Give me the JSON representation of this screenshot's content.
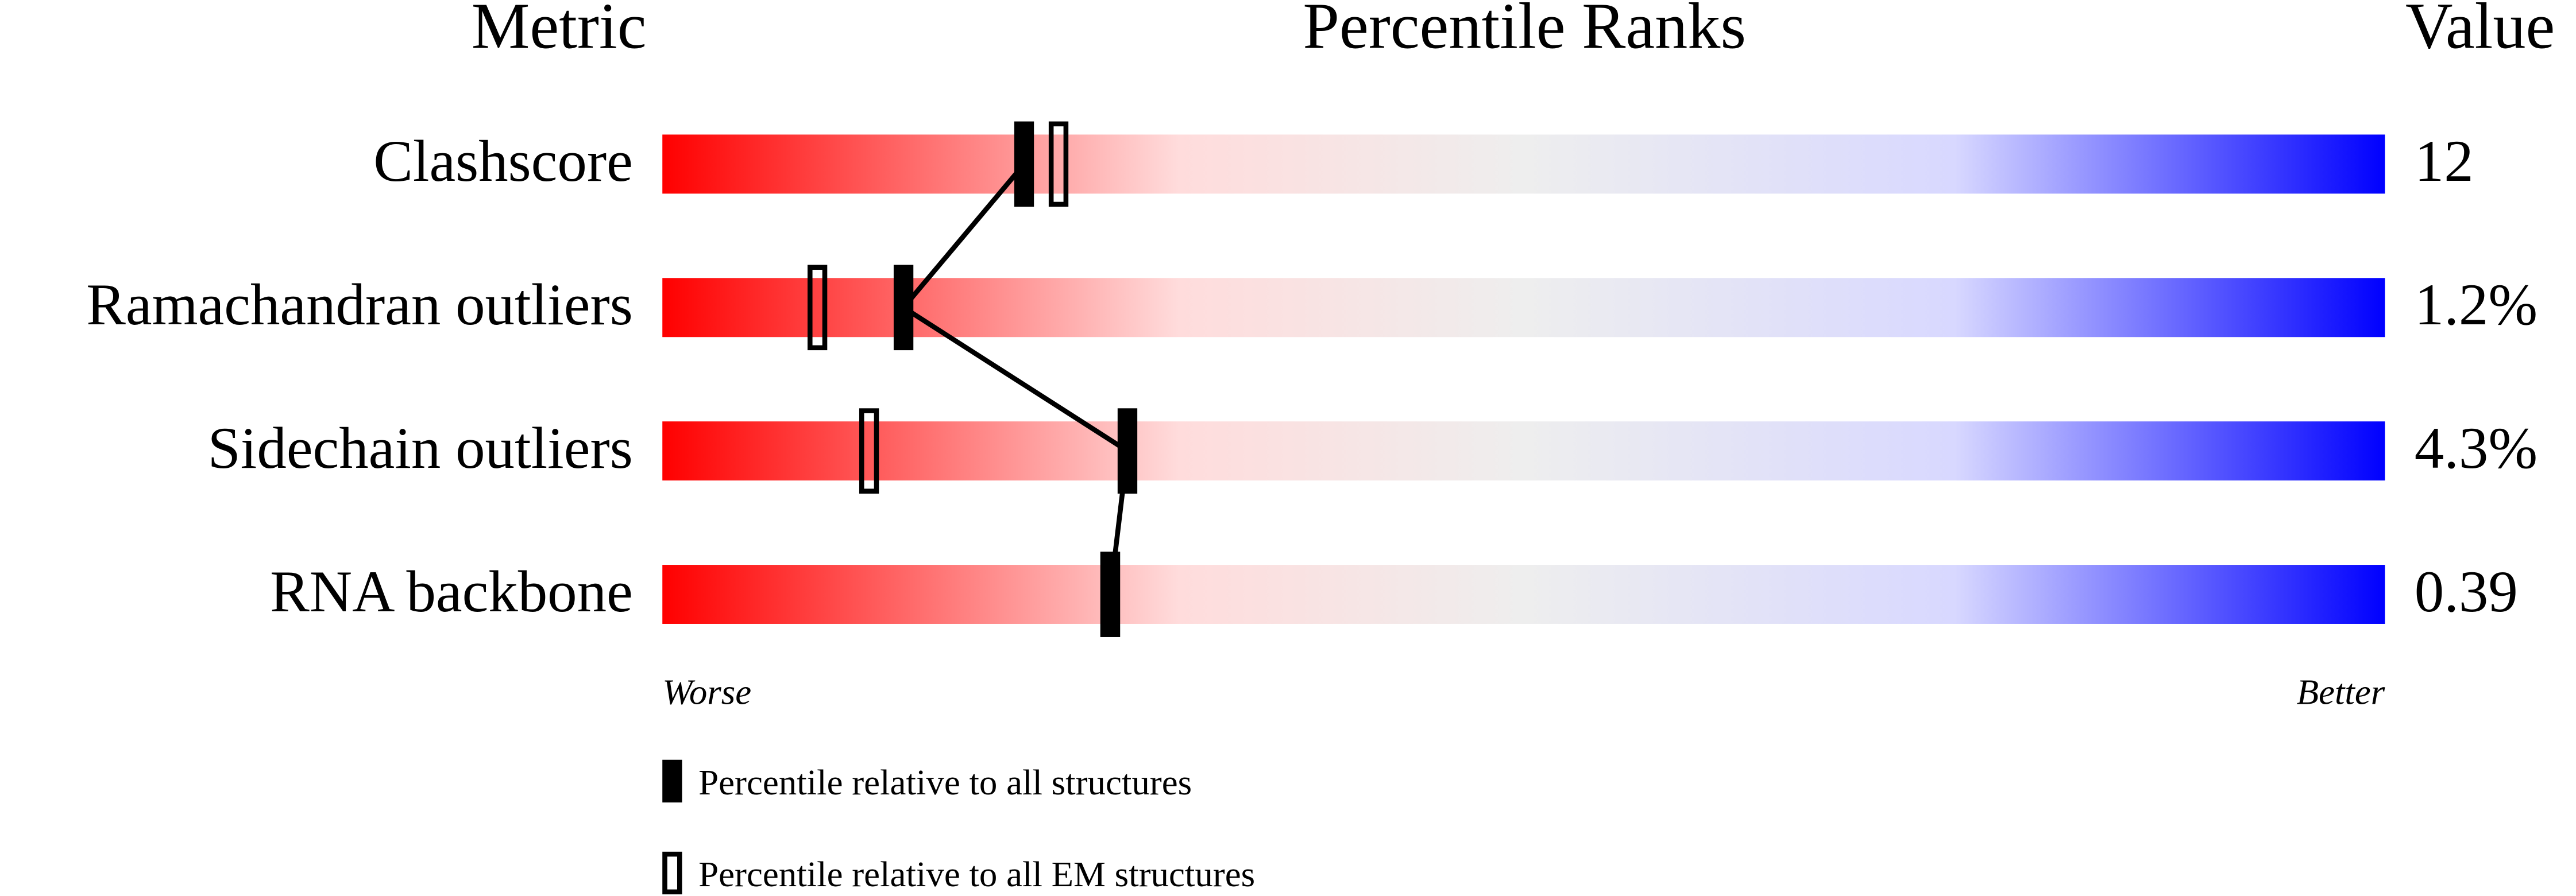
{
  "chart_data": {
    "type": "percentile-slider",
    "title": "Percentile Ranks",
    "metric_header": "Metric",
    "value_header": "Value",
    "categories": [
      "Clashscore",
      "Ramachandran outliers",
      "Sidechain outliers",
      "RNA backbone"
    ],
    "metric_values": [
      12,
      {
        "value": 1.2,
        "label": "1.2%"
      },
      {
        "value": 4.3,
        "label": "4.3%"
      },
      0.39
    ],
    "series": [
      {
        "name": "Percentile relative to all structures",
        "color": "#000000",
        "filled": true,
        "values": [
          21,
          14,
          27,
          26
        ]
      },
      {
        "name": "Percentile relative to all EM structures",
        "color": "#000000",
        "filled": false,
        "values": [
          23,
          9,
          12,
          26
        ]
      }
    ],
    "xlim": [
      0,
      100
    ],
    "worse_label": "Worse",
    "better_label": "Better"
  }
}
